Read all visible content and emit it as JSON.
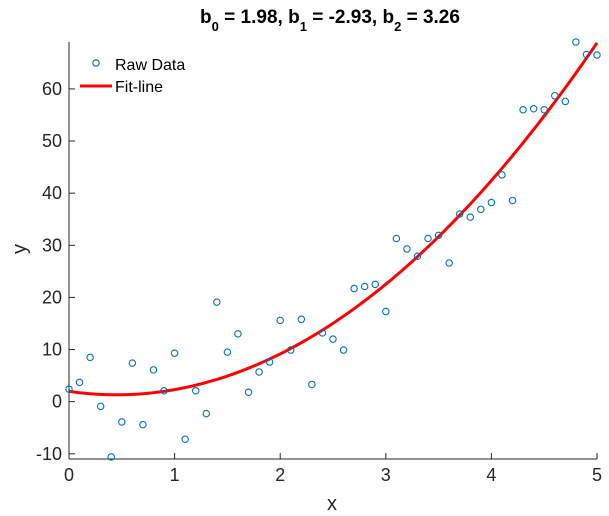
{
  "title": {
    "b0_label": "b",
    "b0_sub": "0",
    "b0_value": " = 1.98,  ",
    "b1_label": "b",
    "b1_sub": "1",
    "b1_value": " = -2.93,  ",
    "b2_label": "b",
    "b2_sub": "2",
    "b2_value": " = 3.26"
  },
  "chart_data": {
    "type": "scatter",
    "title": "b0 = 1.98,  b1 = -2.93,  b2 = 3.26",
    "xlabel": "x",
    "ylabel": "y",
    "xlim": [
      0,
      5
    ],
    "ylim": [
      -11,
      69
    ],
    "x_ticks": [
      0,
      1,
      2,
      3,
      4,
      5
    ],
    "y_ticks": [
      -10,
      0,
      10,
      20,
      30,
      40,
      50,
      60
    ],
    "grid": false,
    "legend_position": "top-left",
    "series": [
      {
        "name": "Raw Data",
        "kind": "scatter",
        "marker": "open-circle",
        "color": "#0072BD",
        "points": [
          [
            0.0,
            2.4
          ],
          [
            0.1,
            3.7
          ],
          [
            0.2,
            8.5
          ],
          [
            0.3,
            -0.9
          ],
          [
            0.4,
            -10.6
          ],
          [
            0.5,
            -3.9
          ],
          [
            0.6,
            7.4
          ],
          [
            0.7,
            -4.4
          ],
          [
            0.8,
            6.1
          ],
          [
            0.9,
            2.1
          ],
          [
            1.0,
            9.3
          ],
          [
            1.1,
            -7.2
          ],
          [
            1.2,
            2.1
          ],
          [
            1.3,
            -2.3
          ],
          [
            1.4,
            19.1
          ],
          [
            1.5,
            9.5
          ],
          [
            1.6,
            13.0
          ],
          [
            1.7,
            1.8
          ],
          [
            1.8,
            5.7
          ],
          [
            1.9,
            7.6
          ],
          [
            2.0,
            15.6
          ],
          [
            2.1,
            9.9
          ],
          [
            2.2,
            15.8
          ],
          [
            2.3,
            3.3
          ],
          [
            2.4,
            13.2
          ],
          [
            2.5,
            12.0
          ],
          [
            2.6,
            9.9
          ],
          [
            2.7,
            21.7
          ],
          [
            2.8,
            22.1
          ],
          [
            2.9,
            22.5
          ],
          [
            3.0,
            17.3
          ],
          [
            3.1,
            31.3
          ],
          [
            3.2,
            29.3
          ],
          [
            3.3,
            27.9
          ],
          [
            3.4,
            31.3
          ],
          [
            3.5,
            31.9
          ],
          [
            3.6,
            26.6
          ],
          [
            3.7,
            36.0
          ],
          [
            3.8,
            35.4
          ],
          [
            3.9,
            36.9
          ],
          [
            4.0,
            38.2
          ],
          [
            4.1,
            43.5
          ],
          [
            4.2,
            38.6
          ],
          [
            4.3,
            56.0
          ],
          [
            4.4,
            56.2
          ],
          [
            4.5,
            56.0
          ],
          [
            4.6,
            58.7
          ],
          [
            4.7,
            57.6
          ],
          [
            4.8,
            69.0
          ],
          [
            4.9,
            66.6
          ],
          [
            5.0,
            66.5
          ]
        ]
      },
      {
        "name": "Fit-line",
        "kind": "line",
        "color": "#FF0000",
        "coefficients": {
          "b0": 1.98,
          "b1": -2.93,
          "b2": 3.26
        },
        "x_range": [
          0,
          5
        ]
      }
    ],
    "axis_color": "#262626"
  }
}
